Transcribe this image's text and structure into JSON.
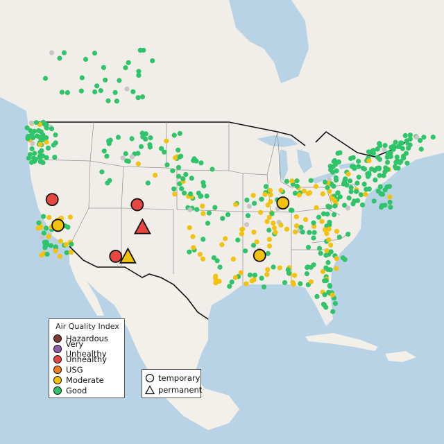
{
  "map": {
    "colors": {
      "water": "#b9d3e6",
      "land": "#f1eeea",
      "land_west": "#ece8e2",
      "mexico": "#f3efe9",
      "border": "#111111",
      "state_line": "#9a9a9a"
    }
  },
  "legend": {
    "title": "Air Quality Index",
    "categories": [
      {
        "label": "Hazardous",
        "color": "#7e3b2e"
      },
      {
        "label": "Very Unhealthy",
        "color": "#8e5fa8"
      },
      {
        "label": "Unhealthy",
        "color": "#e8473f"
      },
      {
        "label": "USG",
        "color": "#f07f1e"
      },
      {
        "label": "Moderate",
        "color": "#f2c20f"
      },
      {
        "label": "Good",
        "color": "#2fc46a"
      }
    ]
  },
  "shape_legend": {
    "items": [
      {
        "label": "temporary",
        "shape": "circle-icon"
      },
      {
        "label": "permanent",
        "shape": "triangle-icon"
      }
    ]
  },
  "markers": [
    {
      "category": "Unhealthy",
      "type": "temporary",
      "lon": -121.6,
      "lat": 40.0
    },
    {
      "category": "Moderate",
      "type": "temporary",
      "lon": -120.6,
      "lat": 37.0
    },
    {
      "category": "Unhealthy",
      "type": "temporary",
      "lon": -107.0,
      "lat": 39.4
    },
    {
      "category": "Unhealthy",
      "type": "permanent",
      "lon": -106.1,
      "lat": 36.8
    },
    {
      "category": "Unhealthy",
      "type": "temporary",
      "lon": -110.7,
      "lat": 33.4
    },
    {
      "category": "Moderate",
      "type": "permanent",
      "lon": -108.6,
      "lat": 33.4
    },
    {
      "category": "Moderate",
      "type": "temporary",
      "lon": -82.0,
      "lat": 39.6
    },
    {
      "category": "Moderate",
      "type": "temporary",
      "lon": -86.0,
      "lat": 33.5
    }
  ]
}
